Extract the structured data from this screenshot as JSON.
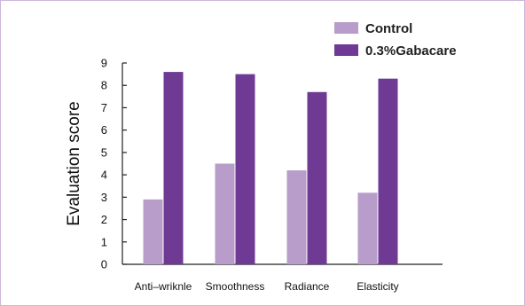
{
  "chart_data": {
    "type": "bar",
    "title": "",
    "xlabel": "",
    "ylabel": "Evaluation score",
    "ylim": [
      0,
      9
    ],
    "yticks": [
      0,
      1,
      2,
      3,
      4,
      5,
      6,
      7,
      8,
      9
    ],
    "categories": [
      "Anti–wriknle",
      "Smoothness",
      "Radiance",
      "Elasticity"
    ],
    "series": [
      {
        "name": "Control",
        "color": "#b89dcb",
        "values": [
          2.9,
          4.5,
          4.2,
          3.2
        ]
      },
      {
        "name": "0.3%Gabacare",
        "color": "#6e3a93",
        "values": [
          8.6,
          8.5,
          7.7,
          8.3
        ]
      }
    ],
    "legend_position": "top-right",
    "grid": false
  }
}
